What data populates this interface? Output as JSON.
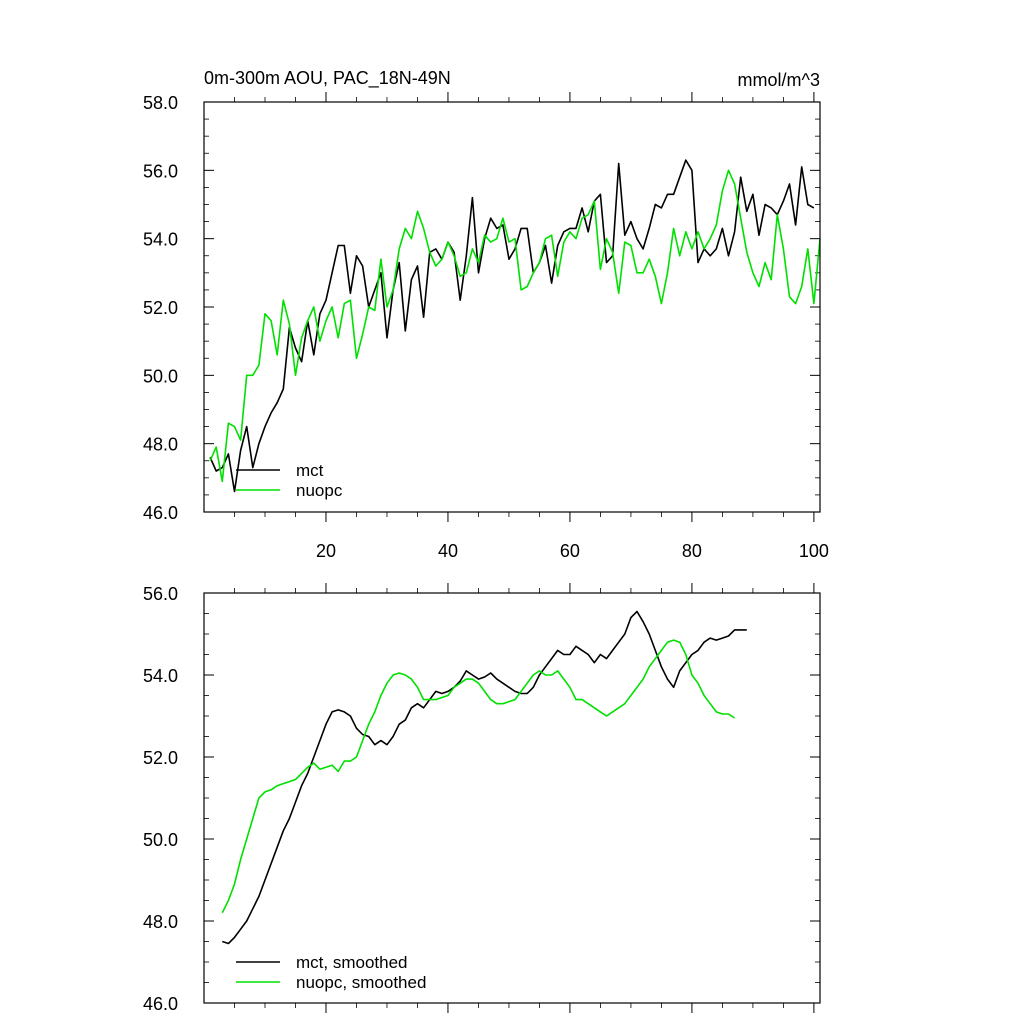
{
  "chart_data": [
    {
      "type": "line",
      "title": "0m-300m AOU, PAC_18N-49N",
      "units": "mmol/m^3",
      "xlabel": "",
      "ylabel": "",
      "xlim": [
        0,
        101
      ],
      "ylim": [
        46,
        58
      ],
      "xticks": [
        20,
        40,
        60,
        80,
        100
      ],
      "xtick_labels": [
        "20",
        "40",
        "60",
        "80",
        "100"
      ],
      "yticks": [
        46,
        48,
        50,
        52,
        54,
        56,
        58
      ],
      "ytick_labels": [
        "46.0",
        "48.0",
        "50.0",
        "52.0",
        "54.0",
        "56.0",
        "58.0"
      ],
      "legend_position": "bottom-left",
      "series": [
        {
          "name": "mct",
          "color": "#000000",
          "values": [
            47.6,
            47.2,
            47.3,
            47.7,
            46.6,
            47.8,
            48.5,
            47.3,
            48.0,
            48.5,
            48.9,
            49.2,
            49.6,
            51.4,
            50.8,
            50.4,
            51.6,
            50.6,
            51.8,
            52.2,
            53.0,
            53.8,
            53.8,
            52.4,
            53.5,
            53.2,
            52.0,
            52.5,
            53.0,
            51.1,
            52.5,
            53.3,
            51.3,
            52.8,
            53.2,
            51.7,
            53.6,
            53.7,
            53.4,
            53.9,
            53.6,
            52.2,
            53.5,
            55.2,
            53.0,
            54.0,
            54.6,
            54.3,
            54.4,
            53.4,
            53.7,
            54.3,
            54.3,
            53.0,
            53.3,
            53.8,
            52.7,
            53.8,
            54.2,
            54.3,
            54.3,
            54.9,
            54.2,
            55.1,
            55.3,
            53.3,
            53.5,
            56.2,
            54.1,
            54.5,
            54.0,
            53.7,
            54.3,
            55.0,
            54.9,
            55.3,
            55.3,
            55.8,
            56.3,
            56.0,
            53.3,
            53.7,
            53.5,
            53.7,
            54.3,
            53.5,
            54.2,
            55.8,
            54.8,
            55.3,
            54.1,
            55.0,
            54.9,
            54.7,
            55.1,
            55.6,
            54.4,
            56.1,
            55.0,
            54.9
          ]
        },
        {
          "name": "nuopc",
          "color": "#00e000",
          "values": [
            47.5,
            47.9,
            46.9,
            48.6,
            48.5,
            48.1,
            50.0,
            50.0,
            50.3,
            51.8,
            51.6,
            50.6,
            52.2,
            51.5,
            50.0,
            51.1,
            51.6,
            52.0,
            51.0,
            51.6,
            52.0,
            51.1,
            52.1,
            52.2,
            50.5,
            51.2,
            52.0,
            51.9,
            53.4,
            52.0,
            52.5,
            53.7,
            54.3,
            54.0,
            54.8,
            54.3,
            53.6,
            53.2,
            53.4,
            53.9,
            53.5,
            52.9,
            53.0,
            53.7,
            53.3,
            54.1,
            53.9,
            54.0,
            54.6,
            53.9,
            54.0,
            52.5,
            52.6,
            53.0,
            53.3,
            54.0,
            54.1,
            52.9,
            53.9,
            54.2,
            54.0,
            54.6,
            54.7,
            55.1,
            53.1,
            54.0,
            53.6,
            52.4,
            53.9,
            53.8,
            53.0,
            53.0,
            53.4,
            52.9,
            52.1,
            53.0,
            54.3,
            53.5,
            54.2,
            53.7,
            54.2,
            53.7,
            54.0,
            54.4,
            55.4,
            56.0,
            55.6,
            54.6,
            53.6,
            53.0,
            52.6,
            53.3,
            52.8,
            54.7,
            53.7,
            52.3,
            52.1,
            52.6,
            53.7,
            52.1,
            54.0
          ]
        }
      ]
    },
    {
      "type": "line",
      "title": "",
      "xlabel": "",
      "ylabel": "",
      "xlim": [
        0,
        101
      ],
      "ylim": [
        46,
        56
      ],
      "yticks": [
        46,
        48,
        50,
        52,
        54,
        56
      ],
      "ytick_labels": [
        "46.0",
        "48.0",
        "50.0",
        "52.0",
        "54.0",
        "56.0"
      ],
      "legend_position": "bottom-left",
      "series": [
        {
          "name": "mct, smoothed",
          "color": "#000000",
          "values": [
            47.5,
            47.45,
            47.6,
            47.8,
            48.0,
            48.3,
            48.6,
            49.0,
            49.4,
            49.8,
            50.2,
            50.5,
            50.9,
            51.3,
            51.6,
            52.0,
            52.4,
            52.8,
            53.1,
            53.15,
            53.1,
            53.0,
            52.7,
            52.55,
            52.5,
            52.3,
            52.4,
            52.3,
            52.5,
            52.8,
            52.9,
            53.2,
            53.3,
            53.2,
            53.4,
            53.6,
            53.55,
            53.6,
            53.7,
            53.85,
            54.1,
            54.0,
            53.9,
            53.95,
            54.05,
            53.9,
            53.8,
            53.7,
            53.6,
            53.55,
            53.55,
            53.7,
            54.0,
            54.2,
            54.4,
            54.6,
            54.5,
            54.5,
            54.7,
            54.6,
            54.5,
            54.3,
            54.5,
            54.4,
            54.6,
            54.8,
            55.0,
            55.4,
            55.55,
            55.3,
            55.0,
            54.6,
            54.2,
            53.9,
            53.7,
            54.1,
            54.3,
            54.5,
            54.6,
            54.8,
            54.9,
            54.85,
            54.9,
            54.95,
            55.1,
            55.1,
            55.1
          ]
        },
        {
          "name": "nuopc, smoothed",
          "color": "#00e000",
          "values": [
            48.2,
            48.5,
            48.9,
            49.5,
            50.0,
            50.5,
            51.0,
            51.15,
            51.2,
            51.3,
            51.35,
            51.4,
            51.45,
            51.6,
            51.75,
            51.85,
            51.7,
            51.75,
            51.8,
            51.65,
            51.9,
            51.9,
            52.0,
            52.4,
            52.8,
            53.1,
            53.5,
            53.8,
            54.0,
            54.05,
            54.0,
            53.9,
            53.7,
            53.4,
            53.4,
            53.4,
            53.45,
            53.5,
            53.7,
            53.8,
            53.9,
            53.9,
            53.8,
            53.6,
            53.4,
            53.3,
            53.3,
            53.35,
            53.4,
            53.6,
            53.8,
            54.0,
            54.1,
            54.0,
            54.0,
            54.1,
            53.9,
            53.7,
            53.4,
            53.4,
            53.3,
            53.2,
            53.1,
            53.0,
            53.1,
            53.2,
            53.3,
            53.5,
            53.7,
            53.9,
            54.2,
            54.4,
            54.6,
            54.8,
            54.85,
            54.8,
            54.5,
            54.0,
            53.8,
            53.5,
            53.3,
            53.1,
            53.05,
            53.05,
            52.95
          ]
        }
      ]
    }
  ]
}
